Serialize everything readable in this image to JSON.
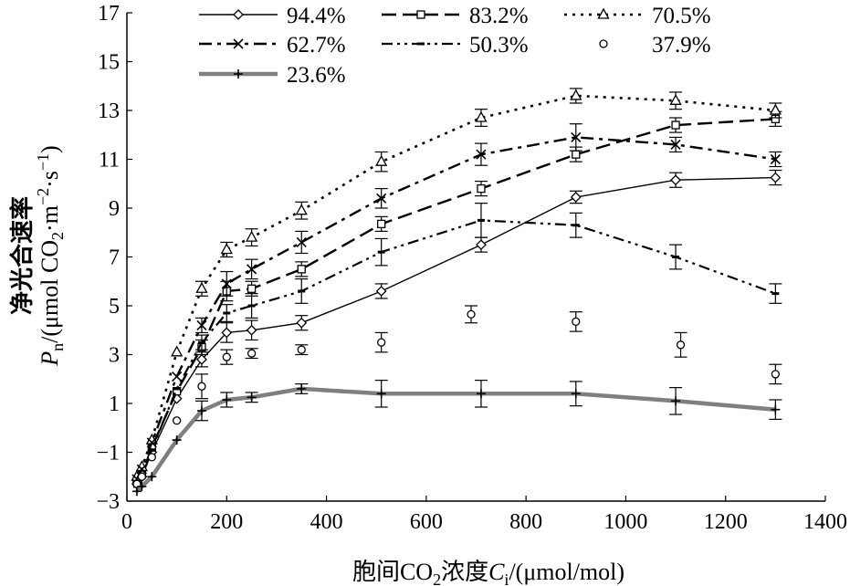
{
  "chart_data": {
    "type": "line",
    "xlabel_parts": {
      "main": "胞间CO",
      "sub": "2",
      "rest": "浓度",
      "ci": "C",
      "ci_sub": "i",
      "unit": "/(μmol/mol)"
    },
    "ylabel_line1": "净光合速率",
    "ylabel_line2": {
      "p": "P",
      "p_sub": "n",
      "a": "/(μmol CO",
      "b": "2",
      "c": "·m",
      "d": "−2",
      "e": "·s",
      "f": "−1",
      "g": ")"
    },
    "xlim": [
      0,
      1400
    ],
    "ylim": [
      -3,
      17
    ],
    "xticks": [
      "0",
      "200",
      "400",
      "600",
      "800",
      "1000",
      "1200",
      "1400"
    ],
    "yticks": [
      "−3",
      "−1",
      "1",
      "3",
      "5",
      "7",
      "9",
      "11",
      "13",
      "15",
      "17"
    ],
    "legend_position": "top",
    "series": [
      {
        "name": "94.4%",
        "dash": "solid",
        "marker": "diamond",
        "stroke": "#000000",
        "width": 1.4,
        "points": [
          [
            20,
            -2.3,
            0.3
          ],
          [
            30,
            -2.0,
            0.3
          ],
          [
            50,
            -1.0,
            0.3
          ],
          [
            100,
            1.2,
            0.3
          ],
          [
            150,
            2.8,
            0.3
          ],
          [
            200,
            3.9,
            0.4
          ],
          [
            250,
            4.0,
            0.4
          ],
          [
            350,
            4.3,
            0.3
          ],
          [
            510,
            5.6,
            0.3
          ],
          [
            710,
            7.5,
            0.3
          ],
          [
            900,
            9.45,
            0.25
          ],
          [
            1100,
            10.15,
            0.3
          ],
          [
            1300,
            10.25,
            0.3
          ]
        ]
      },
      {
        "name": "83.2%",
        "dash": "long-dash",
        "marker": "square",
        "stroke": "#000000",
        "width": 2.4,
        "points": [
          [
            20,
            -2.2,
            0.3
          ],
          [
            30,
            -1.9,
            0.3
          ],
          [
            50,
            -0.8,
            0.3
          ],
          [
            100,
            1.5,
            0.3
          ],
          [
            150,
            3.3,
            0.3
          ],
          [
            200,
            5.6,
            0.4
          ],
          [
            250,
            5.7,
            0.3
          ],
          [
            350,
            6.5,
            0.3
          ],
          [
            510,
            8.35,
            0.3
          ],
          [
            710,
            9.8,
            0.3
          ],
          [
            900,
            11.2,
            0.3
          ],
          [
            1100,
            12.4,
            0.3
          ],
          [
            1300,
            12.65,
            0.3
          ]
        ]
      },
      {
        "name": "70.5%",
        "dash": "dot",
        "marker": "triangle",
        "stroke": "#000000",
        "width": 2.6,
        "points": [
          [
            20,
            -2.0,
            0.3
          ],
          [
            30,
            -1.6,
            0.3
          ],
          [
            50,
            -0.5,
            0.3
          ],
          [
            100,
            3.1,
            0.3
          ],
          [
            150,
            5.7,
            0.3
          ],
          [
            200,
            7.3,
            0.3
          ],
          [
            250,
            7.8,
            0.35
          ],
          [
            350,
            8.9,
            0.35
          ],
          [
            510,
            10.9,
            0.4
          ],
          [
            710,
            12.7,
            0.35
          ],
          [
            900,
            13.6,
            0.3
          ],
          [
            1100,
            13.4,
            0.35
          ],
          [
            1300,
            13.0,
            0.3
          ]
        ]
      },
      {
        "name": "62.7%",
        "dash": "dash-dot",
        "marker": "x",
        "stroke": "#000000",
        "width": 2.4,
        "points": [
          [
            20,
            -2.1,
            0.3
          ],
          [
            30,
            -1.7,
            0.3
          ],
          [
            50,
            -0.6,
            0.3
          ],
          [
            100,
            2.1,
            0.3
          ],
          [
            150,
            4.2,
            0.3
          ],
          [
            200,
            5.9,
            0.5
          ],
          [
            250,
            6.5,
            0.4
          ],
          [
            350,
            7.6,
            0.45
          ],
          [
            510,
            9.4,
            0.4
          ],
          [
            710,
            11.2,
            0.45
          ],
          [
            900,
            11.9,
            0.55
          ],
          [
            1100,
            11.6,
            0.3
          ],
          [
            1300,
            11.0,
            0.3
          ]
        ]
      },
      {
        "name": "50.3%",
        "dash": "dash-dot-dot",
        "marker": "dash",
        "stroke": "#000000",
        "width": 2.2,
        "points": [
          [
            20,
            -2.4,
            0.3
          ],
          [
            30,
            -2.0,
            0.3
          ],
          [
            50,
            -0.9,
            0.3
          ],
          [
            100,
            1.6,
            0.3
          ],
          [
            150,
            3.5,
            0.3
          ],
          [
            200,
            4.7,
            0.35
          ],
          [
            250,
            5.0,
            0.5
          ],
          [
            350,
            5.6,
            0.5
          ],
          [
            510,
            7.2,
            0.55
          ],
          [
            710,
            8.5,
            0.7
          ],
          [
            900,
            8.3,
            0.5
          ],
          [
            1100,
            7.0,
            0.5
          ],
          [
            1300,
            5.5,
            0.4
          ]
        ]
      },
      {
        "name": "37.9%",
        "dash": "none",
        "marker": "circle",
        "stroke": "#000000",
        "width": 1.2,
        "points": [
          [
            20,
            -2.3,
            0.3
          ],
          [
            30,
            -2.0,
            0.3
          ],
          [
            50,
            -1.2,
            0.3
          ],
          [
            100,
            0.3,
            0.4
          ],
          [
            150,
            1.7,
            0.5
          ],
          [
            200,
            2.9,
            0.3
          ],
          [
            250,
            3.05,
            0.2
          ],
          [
            350,
            3.2,
            0.2
          ],
          [
            510,
            3.5,
            0.4
          ],
          [
            690,
            4.65,
            0.35
          ],
          [
            900,
            4.35,
            0.4
          ],
          [
            1110,
            3.4,
            0.5
          ],
          [
            1300,
            2.2,
            0.4
          ]
        ]
      },
      {
        "name": "23.6%",
        "dash": "solid",
        "marker": "plus",
        "stroke": "#7f7f7f",
        "width": 4.5,
        "points": [
          [
            20,
            -2.6,
            0.3
          ],
          [
            30,
            -2.4,
            0.3
          ],
          [
            50,
            -2.0,
            0.3
          ],
          [
            100,
            -0.5,
            0.4
          ],
          [
            150,
            0.7,
            0.4
          ],
          [
            200,
            1.15,
            0.3
          ],
          [
            250,
            1.25,
            0.2
          ],
          [
            350,
            1.6,
            0.2
          ],
          [
            510,
            1.4,
            0.55
          ],
          [
            710,
            1.4,
            0.55
          ],
          [
            900,
            1.4,
            0.5
          ],
          [
            1100,
            1.1,
            0.55
          ],
          [
            1300,
            0.75,
            0.4
          ]
        ]
      }
    ]
  }
}
